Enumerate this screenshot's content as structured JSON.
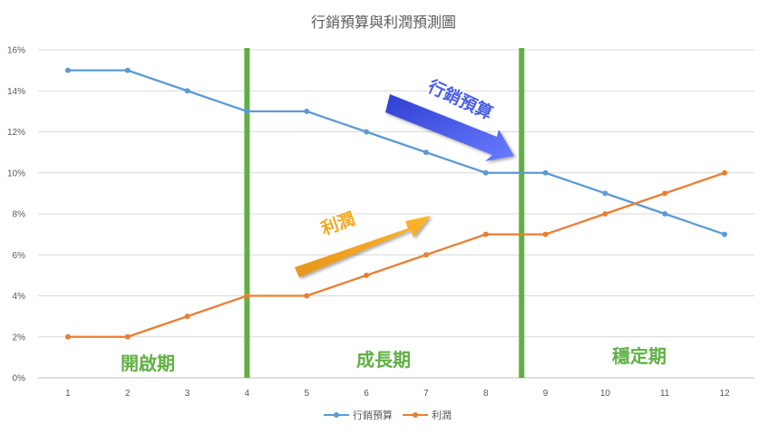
{
  "chart_data": {
    "type": "line",
    "title": "行銷預算與利潤預測圖",
    "x": [
      1,
      2,
      3,
      4,
      5,
      6,
      7,
      8,
      9,
      10,
      11,
      12
    ],
    "xticklabels": [
      "1",
      "2",
      "3",
      "4",
      "5",
      "6",
      "7",
      "8",
      "9",
      "10",
      "11",
      "12"
    ],
    "yticklabels": [
      "0%",
      "2%",
      "4%",
      "6%",
      "8%",
      "10%",
      "12%",
      "14%",
      "16%"
    ],
    "ylim": [
      0,
      16
    ],
    "grid": true,
    "legend": "bottom",
    "series": [
      {
        "name": "行銷預算",
        "color": "#5b9bd5",
        "values": [
          15,
          15,
          14,
          13,
          13,
          12,
          11,
          10,
          10,
          9,
          8,
          7
        ]
      },
      {
        "name": "利潤",
        "color": "#ed7d31",
        "values": [
          2,
          2,
          3,
          4,
          4,
          5,
          6,
          7,
          7,
          8,
          9,
          10
        ]
      }
    ],
    "phase_dividers_x": [
      4,
      8.6
    ],
    "divider_color": "#5fb043",
    "phases": [
      "開啟期",
      "成長期",
      "穩定期"
    ],
    "annotations": [
      {
        "text": "行銷預算",
        "arrow_color": "#4a5ee8"
      },
      {
        "text": "利潤",
        "arrow_color": "#f4a71d"
      }
    ]
  }
}
